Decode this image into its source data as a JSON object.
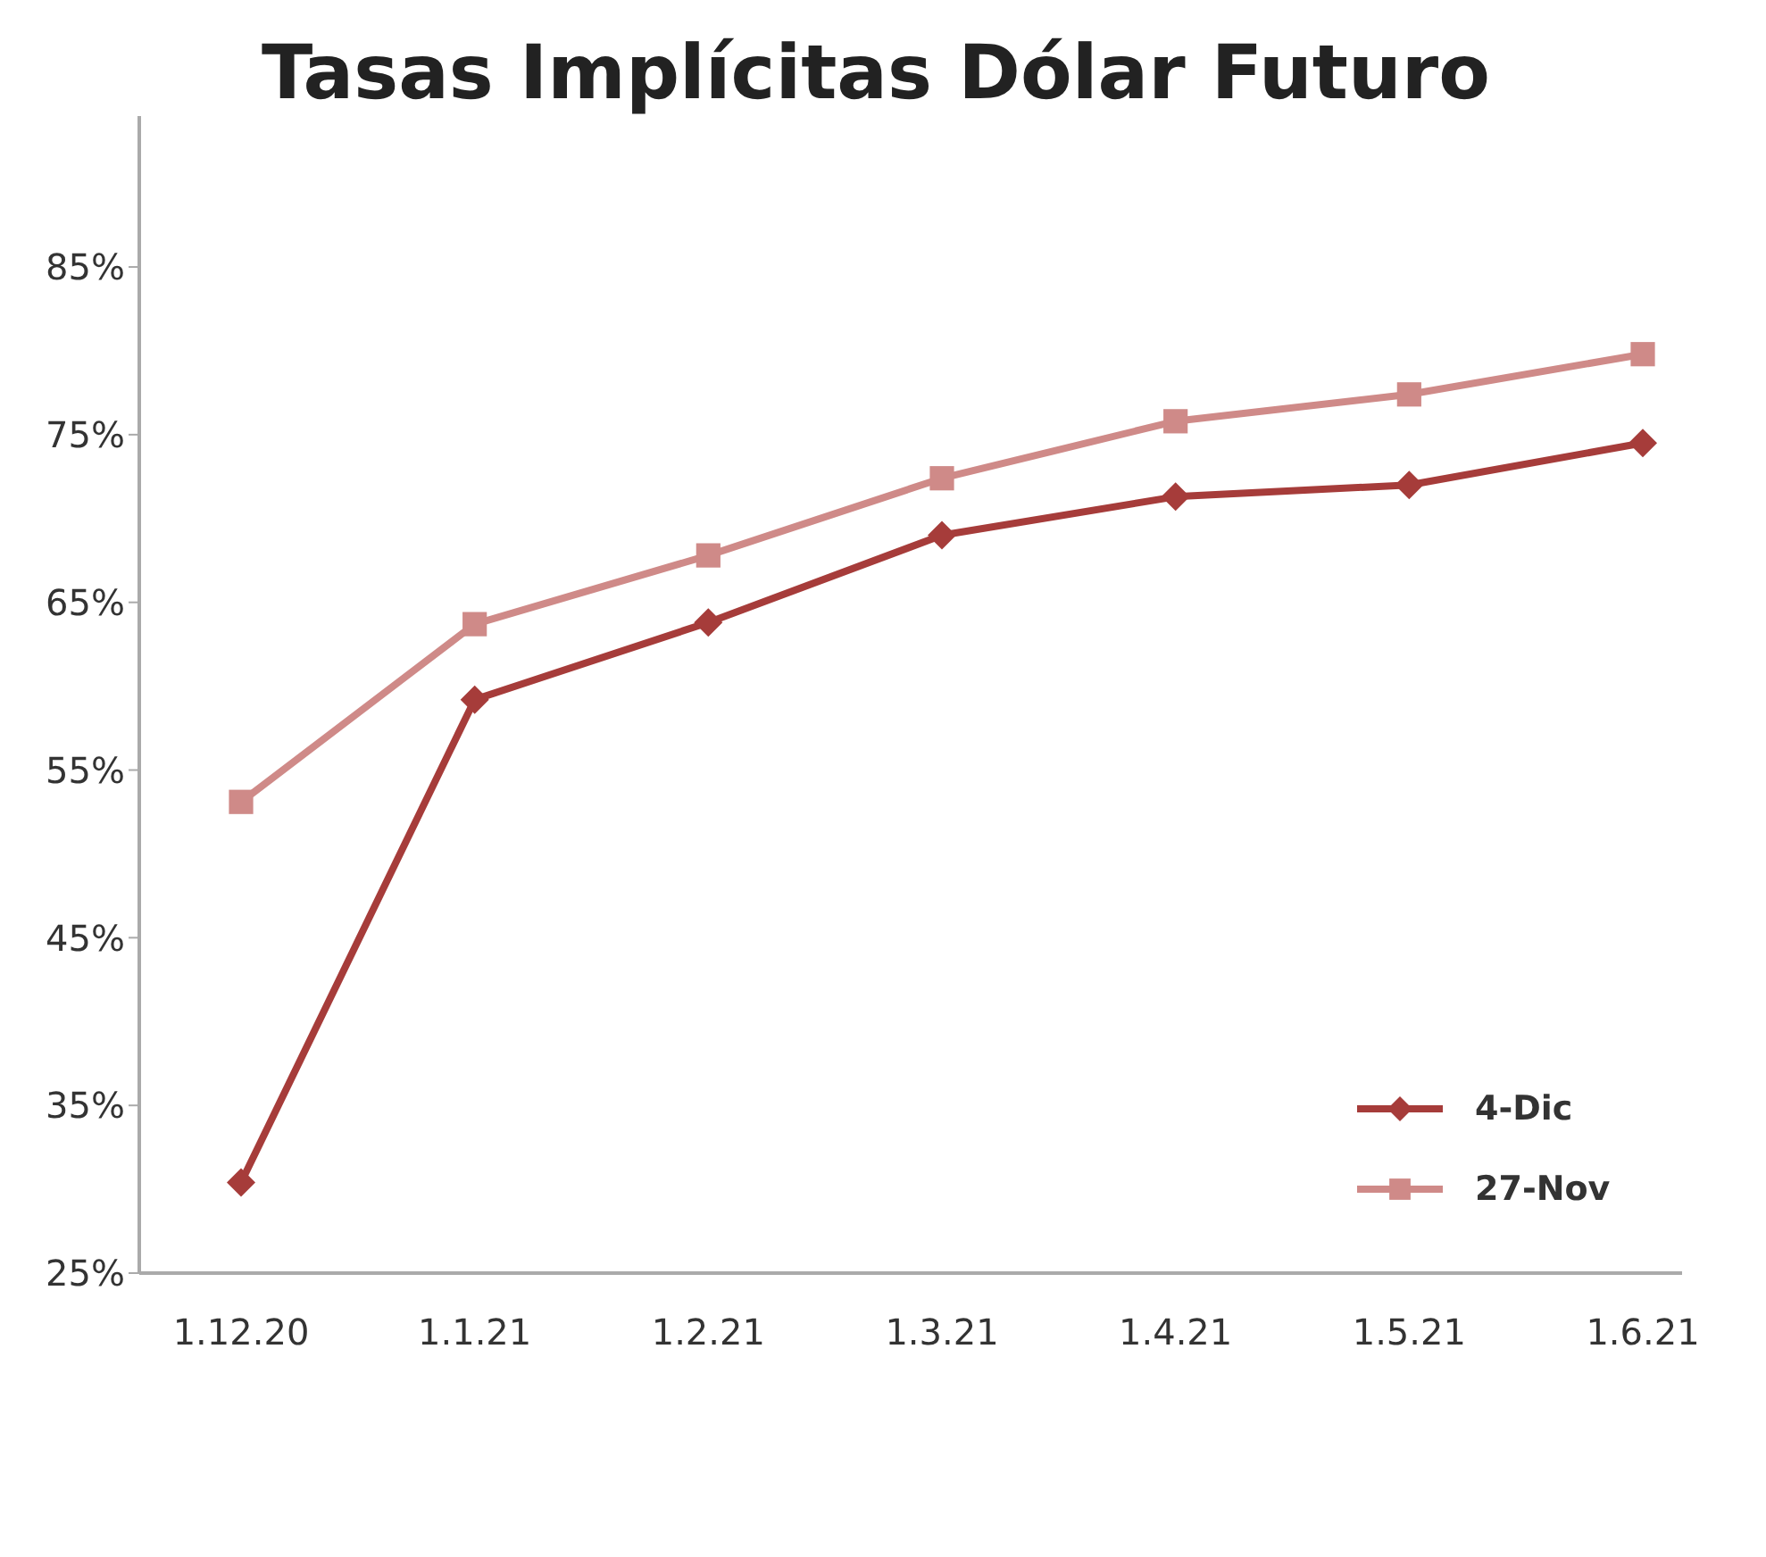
{
  "chart_data": {
    "type": "line",
    "title": "Tasas Implícitas Dólar Futuro",
    "categories": [
      "1.12.20",
      "1.1.21",
      "1.2.21",
      "1.3.21",
      "1.4.21",
      "1.5.21",
      "1.6.21"
    ],
    "series": [
      {
        "name": "4-Dic",
        "color": "#a63c3a",
        "marker": "diamond",
        "values": [
          30.4,
          59.2,
          63.8,
          69.0,
          71.3,
          72.0,
          74.5
        ]
      },
      {
        "name": "27-Nov",
        "color": "#cf8a88",
        "marker": "square",
        "values": [
          53.1,
          63.7,
          67.8,
          72.4,
          75.8,
          77.4,
          79.8
        ]
      }
    ],
    "ylim": [
      25,
      94
    ],
    "yticks": [
      {
        "value": 25,
        "label": "25%"
      },
      {
        "value": 35,
        "label": "35%"
      },
      {
        "value": 45,
        "label": "45%"
      },
      {
        "value": 55,
        "label": "55%"
      },
      {
        "value": 65,
        "label": "65%"
      },
      {
        "value": 75,
        "label": "75%"
      },
      {
        "value": 85,
        "label": "85%"
      }
    ],
    "grid": false,
    "legend": "bottom right",
    "line_style": "solid"
  }
}
